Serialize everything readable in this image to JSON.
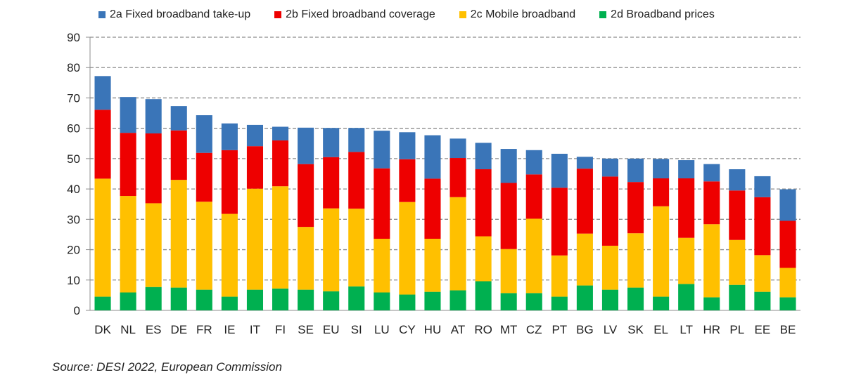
{
  "legend": [
    {
      "label": "2a Fixed broadband take-up",
      "color": "#3a75b8"
    },
    {
      "label": "2b Fixed broadband coverage",
      "color": "#ee0000"
    },
    {
      "label": "2c Mobile broadband",
      "color": "#ffc000"
    },
    {
      "label": "2d Broadband prices",
      "color": "#00b050"
    }
  ],
  "source": "Source: DESI 2022, European Commission",
  "chart_data": {
    "type": "bar",
    "stacked": true,
    "title": "",
    "xlabel": "",
    "ylabel": "",
    "ylim": [
      0,
      90
    ],
    "yticks": [
      0,
      10,
      20,
      30,
      40,
      50,
      60,
      70,
      80,
      90
    ],
    "grid": true,
    "legend_position": "top",
    "categories": [
      "DK",
      "NL",
      "ES",
      "DE",
      "FR",
      "IE",
      "IT",
      "FI",
      "SE",
      "EU",
      "SI",
      "LU",
      "CY",
      "HU",
      "AT",
      "RO",
      "MT",
      "CZ",
      "PT",
      "BG",
      "LV",
      "SK",
      "EL",
      "LT",
      "HR",
      "PL",
      "EE",
      "BE"
    ],
    "series": [
      {
        "name": "2d Broadband prices",
        "color": "#00b050",
        "values": [
          4.5,
          5.9,
          7.7,
          7.5,
          6.8,
          4.5,
          6.8,
          7.2,
          6.8,
          6.3,
          7.9,
          5.9,
          5.2,
          6.1,
          6.6,
          9.6,
          5.7,
          5.7,
          4.5,
          8.2,
          6.8,
          7.5,
          4.5,
          8.7,
          4.3,
          8.4,
          6.1,
          4.3
        ]
      },
      {
        "name": "2c Mobile broadband",
        "color": "#ffc000",
        "values": [
          38.9,
          31.8,
          27.6,
          35.5,
          29.0,
          27.3,
          33.3,
          33.7,
          20.7,
          27.3,
          25.6,
          17.7,
          30.5,
          17.5,
          30.7,
          14.8,
          14.5,
          24.5,
          13.6,
          17.1,
          14.5,
          17.9,
          29.8,
          15.2,
          24.1,
          14.8,
          12.1,
          9.7
        ]
      },
      {
        "name": "2b Fixed broadband coverage",
        "color": "#ee0000",
        "values": [
          22.7,
          20.8,
          23.0,
          16.3,
          16.1,
          21.0,
          14.0,
          15.1,
          20.7,
          16.9,
          18.7,
          23.2,
          14.1,
          19.8,
          12.9,
          22.1,
          21.8,
          14.6,
          22.3,
          21.4,
          22.8,
          16.9,
          9.2,
          19.6,
          14.1,
          16.3,
          19.1,
          15.5
        ]
      },
      {
        "name": "2a Fixed broadband take-up",
        "color": "#3a75b8",
        "values": [
          11.1,
          11.8,
          11.3,
          8.0,
          12.4,
          8.8,
          7.0,
          4.5,
          12.0,
          9.6,
          7.9,
          12.4,
          8.9,
          14.3,
          6.4,
          8.7,
          11.2,
          8.0,
          11.2,
          3.9,
          5.9,
          7.7,
          6.4,
          6.0,
          5.7,
          7.0,
          6.9,
          10.4
        ]
      }
    ],
    "totals": [
      77.2,
      70.3,
      69.6,
      67.3,
      64.3,
      61.6,
      61.1,
      60.5,
      60.2,
      60.1,
      60.1,
      59.2,
      58.7,
      57.7,
      56.6,
      55.2,
      53.2,
      52.8,
      51.6,
      50.6,
      50.0,
      50.0,
      49.9,
      49.5,
      48.2,
      46.5,
      44.2,
      39.9
    ]
  }
}
